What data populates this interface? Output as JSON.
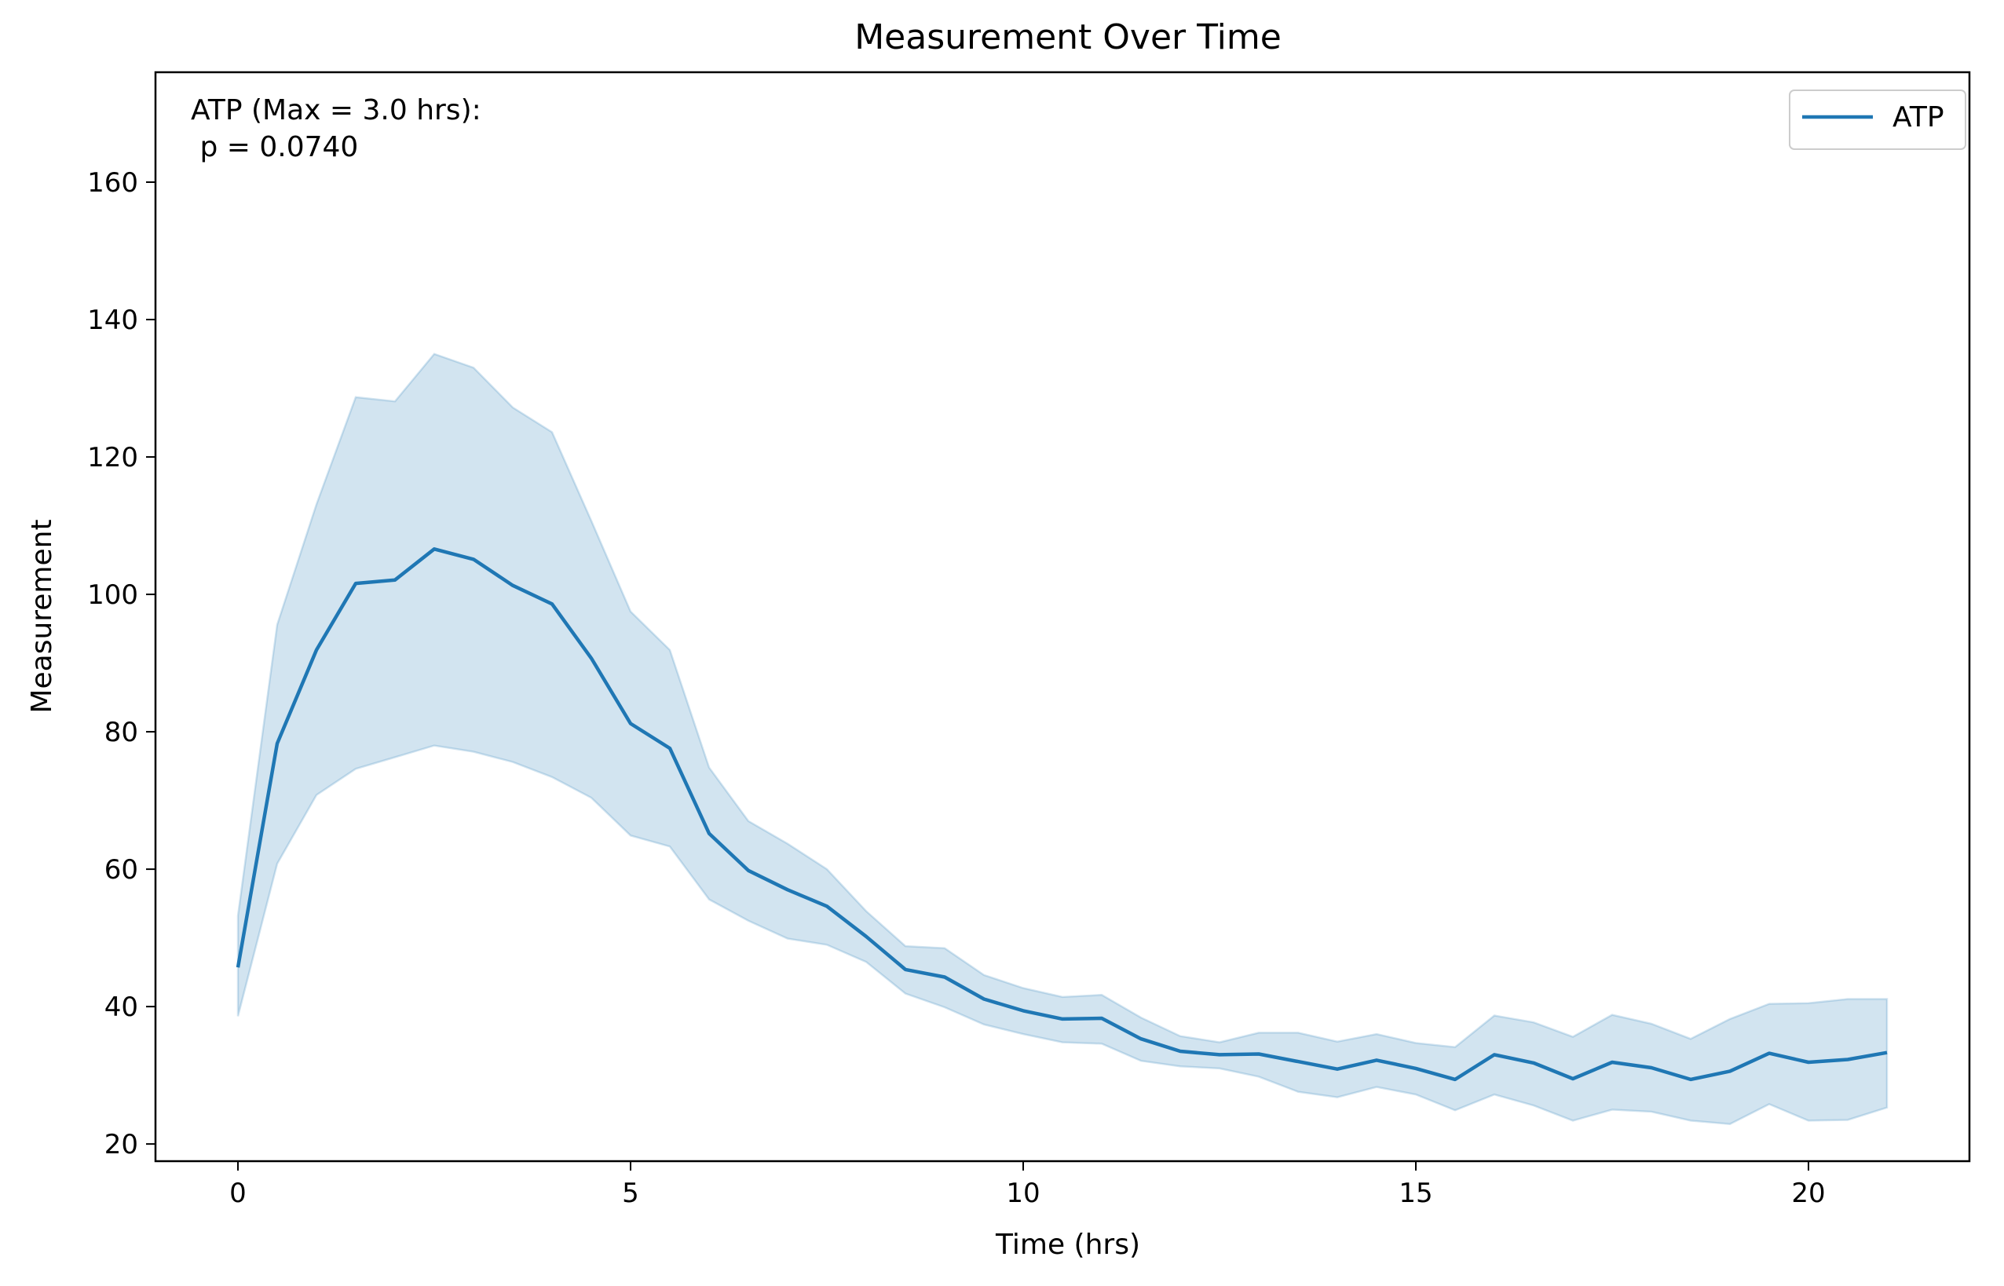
{
  "chart_data": {
    "type": "line",
    "title": "Measurement Over Time",
    "xlabel": "Time (hrs)",
    "ylabel": "Measurement",
    "xlim": [
      -1.05,
      22.05
    ],
    "ylim": [
      17.5,
      176
    ],
    "xticks": [
      0,
      5,
      10,
      15,
      20
    ],
    "yticks": [
      20,
      40,
      60,
      80,
      100,
      120,
      140,
      160
    ],
    "grid": false,
    "legend_position": "top-right",
    "annotation": {
      "line1": "ATP (Max = 3.0 hrs):",
      "line2": " p = 0.0740"
    },
    "colors": {
      "line": "#1f77b4",
      "band": "#1f77b4"
    },
    "series": [
      {
        "name": "ATP",
        "x": [
          0,
          0.5,
          1,
          1.5,
          2,
          2.5,
          3,
          3.5,
          4,
          4.5,
          5,
          5.5,
          6,
          6.5,
          7,
          7.5,
          8,
          8.5,
          9,
          9.5,
          10,
          10.5,
          11,
          11.5,
          12,
          12.5,
          13,
          13.5,
          14,
          14.5,
          15,
          15.5,
          16,
          16.5,
          17,
          17.5,
          18,
          18.5,
          19,
          19.5,
          20,
          20.5,
          21
        ],
        "y": [
          45.7,
          78.3,
          91.9,
          101.6,
          102.1,
          106.6,
          105.1,
          101.3,
          98.6,
          90.7,
          81.2,
          77.6,
          65.2,
          59.8,
          57,
          54.6,
          50.2,
          45.4,
          44.3,
          41.1,
          39.4,
          38.2,
          38.3,
          35.3,
          33.5,
          33,
          33.1,
          32,
          30.9,
          32.2,
          31,
          29.4,
          33,
          31.8,
          29.5,
          31.9,
          31.1,
          29.4,
          30.6,
          33.2,
          31.9,
          32.3,
          33.3
        ],
        "lower": [
          38.6,
          60.8,
          70.8,
          74.6,
          76.3,
          78,
          77.1,
          75.6,
          73.4,
          70.4,
          64.9,
          63.3,
          55.6,
          52.5,
          49.9,
          49,
          46.5,
          41.9,
          39.9,
          37.4,
          36,
          34.8,
          34.6,
          32.1,
          31.3,
          31,
          29.8,
          27.6,
          26.8,
          28.3,
          27.2,
          24.9,
          27.2,
          25.6,
          23.4,
          25,
          24.7,
          23.4,
          22.9,
          25.8,
          23.4,
          23.5,
          25.3
        ],
        "upper": [
          53.2,
          95.6,
          113.1,
          128.7,
          128.1,
          135,
          133,
          127.2,
          123.6,
          110.7,
          97.5,
          91.9,
          74.8,
          67,
          63.7,
          60,
          53.9,
          48.8,
          48.5,
          44.6,
          42.7,
          41.4,
          41.7,
          38.4,
          35.7,
          34.8,
          36.2,
          36.2,
          34.9,
          36,
          34.7,
          34.1,
          38.7,
          37.7,
          35.6,
          38.8,
          37.5,
          35.3,
          38.2,
          40.4,
          40.5,
          41.1,
          41.1
        ]
      }
    ]
  }
}
